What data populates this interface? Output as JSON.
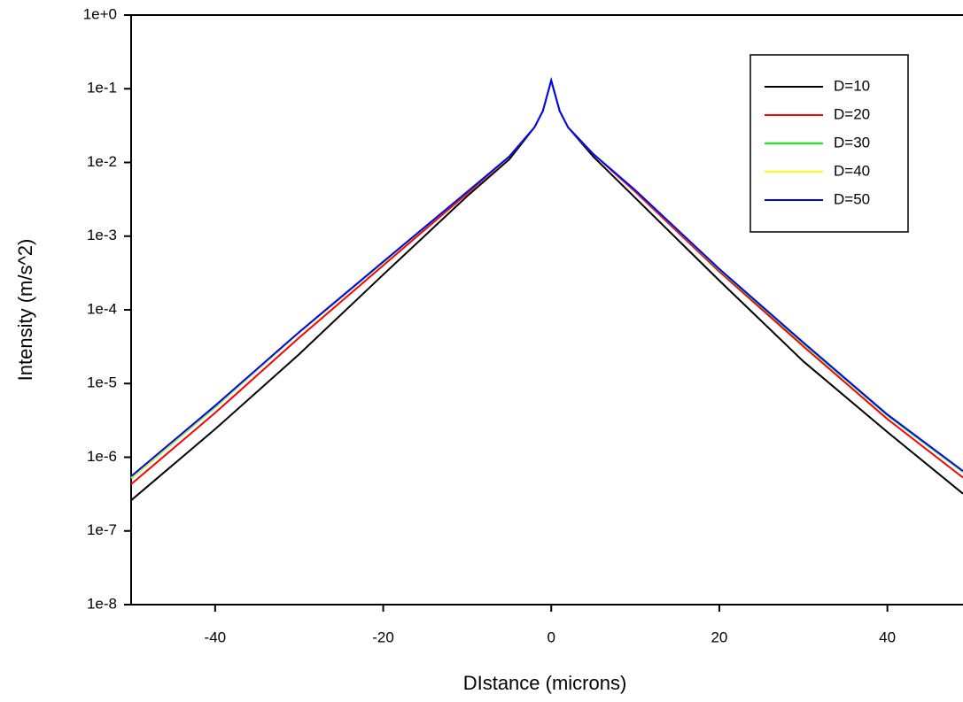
{
  "chart_data": {
    "type": "line",
    "xlabel": "DIstance (microns)",
    "ylabel": "Intensity (m/s^2)",
    "x": [
      -50,
      -40,
      -30,
      -20,
      -10,
      -5,
      -2,
      -1,
      0,
      1,
      2,
      5,
      10,
      20,
      30,
      40,
      49
    ],
    "series": [
      {
        "name": "D=10",
        "color": "#000000",
        "values": [
          2.6e-07,
          2.4e-06,
          2.5e-05,
          0.0003,
          0.0035,
          0.011,
          0.03,
          0.05,
          0.13,
          0.05,
          0.03,
          0.012,
          0.0033,
          0.00025,
          2e-05,
          2.2e-06,
          3.2e-07
        ]
      },
      {
        "name": "D=20",
        "color": "#ff0000",
        "values": [
          4.3e-07,
          4e-06,
          4.2e-05,
          0.0004,
          0.0038,
          0.012,
          0.03,
          0.05,
          0.13,
          0.05,
          0.03,
          0.013,
          0.004,
          0.00033,
          3.2e-05,
          3.3e-06,
          5.3e-07
        ]
      },
      {
        "name": "D=30",
        "color": "#00ff00",
        "values": [
          5.2e-07,
          4.8e-06,
          4.9e-05,
          0.00044,
          0.004,
          0.012,
          0.03,
          0.05,
          0.13,
          0.05,
          0.03,
          0.013,
          0.0042,
          0.00035,
          3.5e-05,
          3.7e-06,
          6.3e-07
        ]
      },
      {
        "name": "D=40",
        "color": "#ffff00",
        "values": [
          5.3e-07,
          4.9e-06,
          4.9e-05,
          0.00045,
          0.004,
          0.012,
          0.03,
          0.05,
          0.13,
          0.05,
          0.03,
          0.013,
          0.0042,
          0.00036,
          3.6e-05,
          3.8e-06,
          6.4e-07
        ]
      },
      {
        "name": "D=50",
        "color": "#0000ff",
        "values": [
          5.5e-07,
          5e-06,
          5e-05,
          0.00045,
          0.004,
          0.012,
          0.03,
          0.05,
          0.13,
          0.05,
          0.03,
          0.013,
          0.0042,
          0.00036,
          3.6e-05,
          3.8e-06,
          6.5e-07
        ]
      }
    ],
    "xlim": [
      -50,
      49
    ],
    "xticks": [
      -40,
      -20,
      0,
      20,
      40
    ],
    "ylim": [
      1e-08,
      1
    ],
    "yscale": "log",
    "yticks": [
      {
        "value": 1e-08,
        "label": "1e-8"
      },
      {
        "value": 1e-07,
        "label": "1e-7"
      },
      {
        "value": 1e-06,
        "label": "1e-6"
      },
      {
        "value": 1e-05,
        "label": "1e-5"
      },
      {
        "value": 0.0001,
        "label": "1e-4"
      },
      {
        "value": 0.001,
        "label": "1e-3"
      },
      {
        "value": 0.01,
        "label": "1e-2"
      },
      {
        "value": 0.1,
        "label": "1e-1"
      },
      {
        "value": 1,
        "label": "1e+0"
      }
    ],
    "legend": "top-right"
  }
}
